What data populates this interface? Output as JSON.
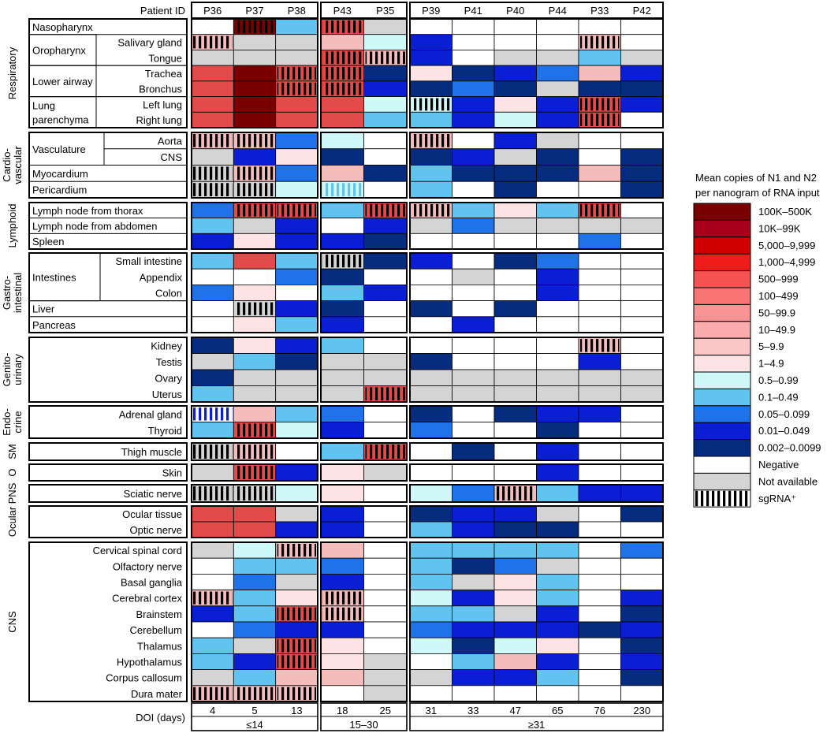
{
  "chart_data": {
    "type": "heatmap",
    "header_label": "Patient ID",
    "groups": [
      {
        "label": "≤14",
        "patients": [
          "P36",
          "P37",
          "P38"
        ],
        "doi": [
          "4",
          "5",
          "13"
        ]
      },
      {
        "label": "15–30",
        "patients": [
          "P43",
          "P35"
        ],
        "doi": [
          "18",
          "25"
        ]
      },
      {
        "label": "≥31",
        "patients": [
          "P39",
          "P41",
          "P40",
          "P44",
          "P33",
          "P42"
        ],
        "doi": [
          "31",
          "33",
          "47",
          "65",
          "76",
          "230"
        ]
      }
    ],
    "doi_label": "DOI (days)",
    "cell_colors": {
      "D": "#7a0000",
      "R": "#e34a4a",
      "P": "#f5bcbc",
      "L": "#fde3e3",
      "C": "#cff9f9",
      "S": "#61c3f0",
      "M": "#1f72e8",
      "B": "#0a1ed4",
      "N": "#062c80",
      "W": "#ffffff",
      "G": "#d4d4d4"
    },
    "stripe_colors": {
      "dark": "#000000",
      "blue": "#0a1ed4",
      "cyan": "#61c3f0"
    },
    "systems": [
      {
        "label": [
          "Respiratory"
        ],
        "rows": [
          {
            "label": "Nasopharynx",
            "cells": [
              "W",
              "Dx",
              "S",
              "Rx",
              "G",
              "W",
              "W",
              "W",
              "W",
              "W",
              "W"
            ]
          },
          {
            "label": "Salivary gland",
            "cells": [
              "Px",
              "G",
              "G",
              "P",
              "C",
              "B",
              "W",
              "W",
              "W",
              "Px",
              "W"
            ]
          },
          {
            "label": "Tongue",
            "cells": [
              "G",
              "G",
              "G",
              "Rx",
              "Px",
              "B",
              "W",
              "G",
              "G",
              "S",
              "G"
            ]
          },
          {
            "label": "Trachea",
            "cells": [
              "R",
              "D",
              "Rx",
              "Rx",
              "N",
              "L",
              "N",
              "B",
              "M",
              "P",
              "B"
            ]
          },
          {
            "label": "Bronchus",
            "cells": [
              "R",
              "D",
              "Rx",
              "Rx",
              "B",
              "N",
              "M",
              "N",
              "G",
              "N",
              "N"
            ]
          },
          {
            "label": "Left lung",
            "cells": [
              "R",
              "D",
              "R",
              "R",
              "C",
              "Cx",
              "B",
              "L",
              "B",
              "Rx",
              "B"
            ]
          },
          {
            "label": "Right lung",
            "cells": [
              "R",
              "D",
              "R",
              "R",
              "S",
              "S",
              "B",
              "C",
              "B",
              "Rx",
              "W"
            ]
          }
        ]
      },
      {
        "label": [
          "Cardio-",
          "vascular"
        ],
        "rows": [
          {
            "label": "Aorta",
            "cells": [
              "Px",
              "Px",
              "M",
              "C",
              "W",
              "Px",
              "W",
              "B",
              "G",
              "W",
              "W"
            ]
          },
          {
            "label": "CNS",
            "cells": [
              "G",
              "B",
              "L",
              "N",
              "W",
              "N",
              "B",
              "G",
              "N",
              "W",
              "N"
            ]
          },
          {
            "label": "Myocardium",
            "cells": [
              "Gx",
              "Px",
              "M",
              "P",
              "N",
              "S",
              "N",
              "N",
              "N",
              "P",
              "N"
            ]
          },
          {
            "label": "Pericardium",
            "cells": [
              "Gx",
              "Gx",
              "C",
              "Cc",
              "W",
              "S",
              "W",
              "N",
              "W",
              "W",
              "N"
            ]
          }
        ]
      },
      {
        "label": [
          "Lymphoid"
        ],
        "rows": [
          {
            "label": "Lymph node from thorax",
            "cells": [
              "M",
              "Rx",
              "Rx",
              "S",
              "Rx",
              "Px",
              "S",
              "L",
              "S",
              "Rx",
              "W"
            ]
          },
          {
            "label": "Lymph node from abdomen",
            "cells": [
              "S",
              "G",
              "B",
              "W",
              "B",
              "G",
              "M",
              "G",
              "G",
              "G",
              "G"
            ]
          },
          {
            "label": "Spleen",
            "cells": [
              "B",
              "L",
              "B",
              "B",
              "N",
              "W",
              "W",
              "W",
              "W",
              "M",
              "W"
            ]
          }
        ]
      },
      {
        "label": [
          "Gastro-",
          "intestinal"
        ],
        "rows": [
          {
            "label": "Small intestine",
            "cells": [
              "S",
              "R",
              "S",
              "Gx",
              "N",
              "B",
              "W",
              "N",
              "M",
              "W",
              "W"
            ]
          },
          {
            "label": "Appendix",
            "cells": [
              "W",
              "W",
              "M",
              "N",
              "W",
              "W",
              "G",
              "W",
              "B",
              "W",
              "W"
            ]
          },
          {
            "label": "Colon",
            "cells": [
              "M",
              "L",
              "W",
              "S",
              "B",
              "W",
              "W",
              "W",
              "B",
              "W",
              "W"
            ]
          },
          {
            "label": "Liver",
            "cells": [
              "W",
              "Gx",
              "B",
              "N",
              "W",
              "N",
              "W",
              "N",
              "W",
              "W",
              "W"
            ]
          },
          {
            "label": "Pancreas",
            "cells": [
              "W",
              "L",
              "S",
              "B",
              "W",
              "W",
              "B",
              "W",
              "W",
              "W",
              "W"
            ]
          }
        ]
      },
      {
        "label": [
          "Genito-",
          "urinary"
        ],
        "rows": [
          {
            "label": "Kidney",
            "cells": [
              "N",
              "L",
              "B",
              "S",
              "W",
              "W",
              "W",
              "W",
              "W",
              "Px",
              "W"
            ]
          },
          {
            "label": "Testis",
            "cells": [
              "G",
              "S",
              "N",
              "G",
              "G",
              "N",
              "W",
              "W",
              "W",
              "B",
              "W"
            ]
          },
          {
            "label": "Ovary",
            "cells": [
              "N",
              "G",
              "G",
              "G",
              "G",
              "G",
              "G",
              "G",
              "G",
              "G",
              "G"
            ]
          },
          {
            "label": "Uterus",
            "cells": [
              "S",
              "G",
              "G",
              "G",
              "Rx",
              "G",
              "G",
              "G",
              "G",
              "G",
              "G"
            ]
          }
        ]
      },
      {
        "label": [
          "Endo-",
          "crine"
        ],
        "rows": [
          {
            "label": "Adrenal gland",
            "cells": [
              "Wb",
              "P",
              "S",
              "M",
              "W",
              "N",
              "W",
              "N",
              "B",
              "B",
              "W"
            ]
          },
          {
            "label": "Thyroid",
            "cells": [
              "S",
              "Rx",
              "C",
              "B",
              "W",
              "M",
              "W",
              "W",
              "N",
              "W",
              "W"
            ]
          }
        ]
      },
      {
        "label": [
          "SM"
        ],
        "rows": [
          {
            "label": "Thigh muscle",
            "cells": [
              "Gx",
              "Px",
              "W",
              "S",
              "Rr",
              "W",
              "N",
              "W",
              "B",
              "W",
              "W"
            ]
          }
        ]
      },
      {
        "label": [
          "O"
        ],
        "rows": [
          {
            "label": "Skin",
            "cells": [
              "G",
              "Rx",
              "B",
              "L",
              "G",
              "W",
              "W",
              "W",
              "B",
              "W",
              "W"
            ]
          }
        ]
      },
      {
        "label": [
          "PNS"
        ],
        "rows": [
          {
            "label": "Sciatic nerve",
            "cells": [
              "Gx",
              "Gx",
              "C",
              "L",
              "W",
              "C",
              "M",
              "Px",
              "S",
              "B",
              "B"
            ]
          }
        ]
      },
      {
        "label": [
          "Ocular"
        ],
        "rows": [
          {
            "label": "Ocular tissue",
            "cells": [
              "R",
              "R",
              "G",
              "B",
              "W",
              "N",
              "B",
              "B",
              "G",
              "W",
              "N"
            ]
          },
          {
            "label": "Optic nerve",
            "cells": [
              "R",
              "R",
              "B",
              "B",
              "W",
              "S",
              "B",
              "N",
              "N",
              "W",
              "W"
            ]
          }
        ]
      },
      {
        "label": [
          "CNS"
        ],
        "rows": [
          {
            "label": "Cervical spinal cord",
            "cells": [
              "G",
              "C",
              "Px",
              "P",
              "W",
              "S",
              "S",
              "S",
              "S",
              "W",
              "M"
            ]
          },
          {
            "label": "Olfactory nerve",
            "cells": [
              "W",
              "S",
              "S",
              "M",
              "W",
              "S",
              "N",
              "M",
              "G",
              "W",
              "W"
            ]
          },
          {
            "label": "Basal ganglia",
            "cells": [
              "W",
              "M",
              "G",
              "B",
              "W",
              "S",
              "G",
              "L",
              "S",
              "W",
              "W"
            ]
          },
          {
            "label": "Cerebral cortex",
            "cells": [
              "Px",
              "S",
              "L",
              "Px",
              "W",
              "C",
              "B",
              "L",
              "S",
              "W",
              "B"
            ]
          },
          {
            "label": "Brainstem",
            "cells": [
              "B",
              "S",
              "Rx",
              "Px",
              "W",
              "S",
              "S",
              "G",
              "B",
              "W",
              "N"
            ]
          },
          {
            "label": "Cerebellum",
            "cells": [
              "W",
              "M",
              "B",
              "B",
              "W",
              "M",
              "B",
              "B",
              "B",
              "N",
              "B"
            ]
          },
          {
            "label": "Thalamus",
            "cells": [
              "S",
              "G",
              "Rx",
              "L",
              "W",
              "C",
              "N",
              "C",
              "L",
              "W",
              "N"
            ]
          },
          {
            "label": "Hypothalamus",
            "cells": [
              "S",
              "B",
              "Rx",
              "L",
              "G",
              "W",
              "S",
              "P",
              "B",
              "W",
              "B"
            ]
          },
          {
            "label": "Corpus callosum",
            "cells": [
              "G",
              "S",
              "P",
              "P",
              "G",
              "G",
              "B",
              "B",
              "S",
              "W",
              "N"
            ]
          },
          {
            "label": "Dura mater",
            "cells": [
              "Px",
              "Px",
              "Px",
              "W",
              "G",
              "W",
              "W",
              "W",
              "W",
              "W",
              "W"
            ]
          }
        ]
      }
    ],
    "merged_labels": [
      {
        "label": [
          "Oropharynx"
        ],
        "rows": [
          "Salivary gland",
          "Tongue"
        ]
      },
      {
        "label": [
          "Lower airway"
        ],
        "rows": [
          "Trachea",
          "Bronchus"
        ]
      },
      {
        "label": [
          "Lung",
          "parenchyma"
        ],
        "rows": [
          "Left lung",
          "Right lung"
        ]
      },
      {
        "label": [
          "Vasculature"
        ],
        "rows": [
          "Aorta",
          "CNS"
        ]
      },
      {
        "label": [
          "Intestines"
        ],
        "rows": [
          "Small intestine",
          "Appendix",
          "Colon"
        ]
      }
    ],
    "legend": {
      "title": [
        "Mean copies of N1 and N2",
        "per nanogram of RNA input"
      ],
      "items": [
        {
          "label": "100K–500K",
          "color": "#7a0000"
        },
        {
          "label": "10K–99K",
          "color": "#a8001c"
        },
        {
          "label": "5,000–9,999",
          "color": "#d10000"
        },
        {
          "label": "1,000–4,999",
          "color": "#f01c1c"
        },
        {
          "label": "500–999",
          "color": "#f55252"
        },
        {
          "label": "100–499",
          "color": "#f87474"
        },
        {
          "label": "50–99.9",
          "color": "#fa9494"
        },
        {
          "label": "10–49.9",
          "color": "#fbabab"
        },
        {
          "label": "5–9.9",
          "color": "#fcc6c6"
        },
        {
          "label": "1–4.9",
          "color": "#fde3e3"
        },
        {
          "label": "0.5–0.99",
          "color": "#cff9f9"
        },
        {
          "label": "0.1–0.49",
          "color": "#61c3f0"
        },
        {
          "label": "0.05–0.099",
          "color": "#1f72e8"
        },
        {
          "label": "0.01–0.049",
          "color": "#0a1ed4"
        },
        {
          "label": "0.002–0.0099",
          "color": "#062c80"
        },
        {
          "label": "Negative",
          "color": "#ffffff"
        },
        {
          "label": "Not available",
          "color": "#d4d4d4"
        },
        {
          "label": "sgRNA⁺",
          "color": "stripes"
        }
      ]
    }
  }
}
